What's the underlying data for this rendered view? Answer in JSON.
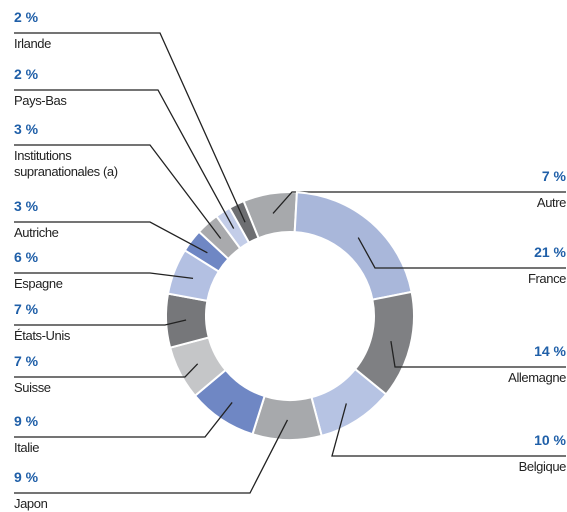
{
  "chart_data": {
    "type": "donut",
    "categories": [
      "Autre",
      "France",
      "Allemagne",
      "Belgique",
      "Japon",
      "Italie",
      "Suisse",
      "États-Unis",
      "Espagne",
      "Autriche",
      "Institutions supranationales (a)",
      "Pays-Bas",
      "Irlande"
    ],
    "values": [
      7,
      21,
      14,
      10,
      9,
      9,
      7,
      7,
      6,
      3,
      3,
      2,
      2
    ],
    "value_labels": [
      "7 %",
      "21 %",
      "14 %",
      "10 %",
      "9 %",
      "9 %",
      "7 %",
      "7 %",
      "6 %",
      "3 %",
      "3 %",
      "2 %",
      "2 %"
    ],
    "colors": [
      "#a7a9ac",
      "#a9b7da",
      "#7f8083",
      "#b6c3e3",
      "#a7a9ac",
      "#6f87c4",
      "#c5c6c8",
      "#76777a",
      "#b3c0e2",
      "#6f87c4",
      "#a9aaad",
      "#c3cde8",
      "#6d6e71"
    ]
  }
}
